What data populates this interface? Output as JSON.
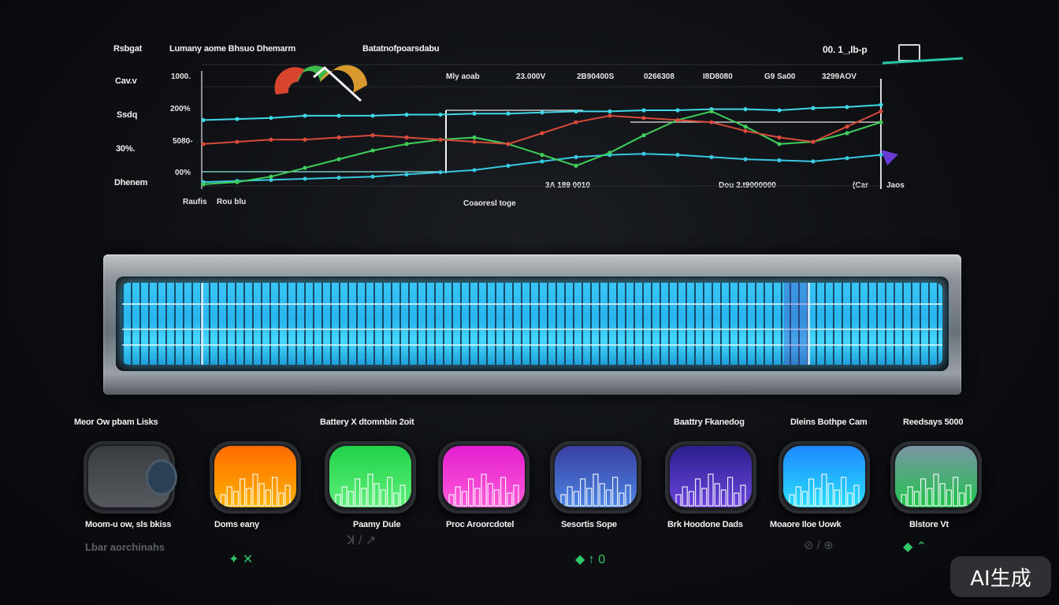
{
  "chart": {
    "header_left": "Rsbgat",
    "header_title": "Lumany aome Bhsuo Dhemarm",
    "header_center": "Batatnofpoarsdabu",
    "header_right": "00. 1_,Ib-p",
    "row_labels": [
      "Cav.v",
      "Ssdq",
      "30%.",
      "Dhenem"
    ],
    "y_ticks": [
      "1000.",
      "200%",
      "5080-",
      "00%"
    ],
    "top_values": [
      "Mly aoab",
      "23.000V",
      "2B90400S",
      "0266308",
      "I8D8080",
      "G9 Sa00",
      "3299AOV"
    ],
    "bottom_labels": [
      "3A 189 0010",
      "Dou 2.t9000000",
      "(Car",
      "Jaos"
    ],
    "x_label_left": "Raufis",
    "x_label_left2": "Rou blu",
    "x_label_center": "Coaoresl toge"
  },
  "chart_data": {
    "type": "line",
    "title": "Lumany aome Bhsuo Dhemarm",
    "x": [
      0,
      1,
      2,
      3,
      4,
      5,
      6,
      7,
      8,
      9,
      10,
      11,
      12,
      13,
      14,
      15,
      16,
      17,
      18,
      19,
      20
    ],
    "series": [
      {
        "name": "cyan-upper",
        "color": "#3fd8e6",
        "values": [
          62,
          63,
          64,
          66,
          66,
          66,
          67,
          67,
          68,
          68,
          69,
          70,
          70,
          71,
          71,
          72,
          72,
          71,
          73,
          74,
          76
        ]
      },
      {
        "name": "cyan-lower",
        "color": "#38c8e0",
        "values": [
          5,
          6,
          7,
          8,
          9,
          10,
          12,
          14,
          16,
          20,
          24,
          28,
          30,
          31,
          30,
          28,
          26,
          25,
          24,
          27,
          30
        ]
      },
      {
        "name": "green",
        "color": "#3ecf5a",
        "values": [
          3,
          5,
          10,
          18,
          26,
          34,
          40,
          44,
          46,
          40,
          30,
          20,
          32,
          48,
          62,
          70,
          56,
          40,
          42,
          50,
          60
        ]
      },
      {
        "name": "red",
        "color": "#d84a3a",
        "values": [
          40,
          42,
          44,
          44,
          46,
          48,
          46,
          44,
          42,
          40,
          50,
          60,
          66,
          64,
          62,
          60,
          52,
          46,
          42,
          56,
          70
        ]
      }
    ],
    "ylim": [
      0,
      100
    ]
  },
  "cards_section": {
    "labels_top": [
      "Meor Ow pbam Lisks",
      "Battery X dtomnbin 2oit",
      "Baattry Fkanedog",
      "Dleins Bothpe Cam",
      "Reedsays 5000"
    ],
    "cards": [
      {
        "name": "Moom-u ow, sls bkiss",
        "colors": [
          "#3a3d42",
          "#55595f"
        ]
      },
      {
        "name": "Doms eany",
        "colors": [
          "#ff6a00",
          "#ffb300"
        ]
      },
      {
        "name": "Paamy Dule",
        "colors": [
          "#1fd14a",
          "#5ff07a"
        ]
      },
      {
        "name": "Proc Aroorcdotel",
        "colors": [
          "#e31fd0",
          "#ff5ad8"
        ]
      },
      {
        "name": "Sesortis Sope",
        "colors": [
          "#3a3fa0",
          "#4b86e6"
        ]
      },
      {
        "name": "Brk Hoodone Dads",
        "colors": [
          "#2b1f8a",
          "#6c45e0"
        ]
      },
      {
        "name": "Moaore Iloe Uowk",
        "colors": [
          "#1e88ff",
          "#29e0ff"
        ]
      },
      {
        "name": "Blstore Vt",
        "colors": [
          "#7b95a6",
          "#1ec44a"
        ]
      }
    ],
    "footer_left": "Lbar aorchinahs",
    "footer_icons": [
      "✦ ✕",
      "ꓘ / ↗",
      "◆ ↑ 0",
      "⊘ / ⊕",
      "◆ ⌃"
    ],
    "watermark": "AI生成"
  }
}
